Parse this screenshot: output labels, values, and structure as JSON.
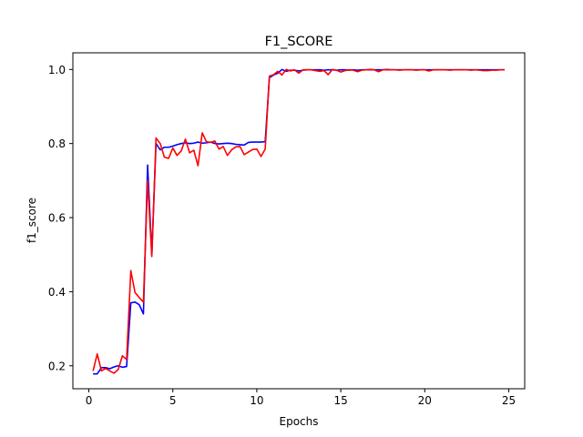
{
  "chart_data": {
    "type": "line",
    "title": "F1_SCORE",
    "xlabel": "Epochs",
    "ylabel": "f1_score",
    "xlim": [
      -0.95,
      25.95
    ],
    "ylim": [
      0.138,
      1.045
    ],
    "xticks": [
      0,
      5,
      10,
      15,
      20,
      25
    ],
    "yticks": [
      0.2,
      0.4,
      0.6,
      0.8,
      1.0
    ],
    "ytick_labels": [
      "0.2",
      "0.4",
      "0.6",
      "0.8",
      "1.0"
    ],
    "grid": false,
    "series": [
      {
        "color": "#0000ff",
        "x": [
          0.25,
          0.5,
          0.75,
          1.0,
          1.25,
          1.5,
          1.75,
          2.0,
          2.25,
          2.5,
          2.75,
          3.0,
          3.25,
          3.5,
          3.75,
          4.0,
          4.25,
          4.5,
          4.75,
          5.0,
          5.25,
          5.5,
          5.75,
          6.0,
          6.25,
          6.5,
          6.75,
          7.0,
          7.25,
          7.5,
          7.75,
          8.0,
          8.25,
          8.5,
          8.75,
          9.0,
          9.25,
          9.5,
          9.75,
          10.0,
          10.25,
          10.5,
          10.75,
          11.0,
          11.25,
          11.5,
          11.75,
          12.0,
          12.25,
          12.5,
          12.75,
          13.0,
          13.25,
          13.5,
          13.75,
          14.0,
          14.25,
          14.5,
          14.75,
          15.0,
          15.25,
          15.5,
          15.75,
          16.0,
          16.25,
          16.5,
          16.75,
          17.0,
          17.25,
          17.5,
          17.75,
          18.0,
          18.25,
          18.5,
          18.75,
          19.0,
          19.25,
          19.5,
          19.75,
          20.0,
          20.25,
          20.5,
          20.75,
          21.0,
          21.25,
          21.5,
          21.75,
          22.0,
          22.25,
          22.5,
          22.75,
          23.0,
          23.25,
          23.5,
          23.75,
          24.0,
          24.25,
          24.5,
          24.75
        ],
        "y": [
          0.178,
          0.178,
          0.195,
          0.195,
          0.192,
          0.197,
          0.2,
          0.196,
          0.198,
          0.37,
          0.372,
          0.365,
          0.34,
          0.742,
          0.5,
          0.8,
          0.783,
          0.79,
          0.79,
          0.793,
          0.797,
          0.8,
          0.802,
          0.8,
          0.801,
          0.804,
          0.801,
          0.802,
          0.804,
          0.8,
          0.799,
          0.8,
          0.801,
          0.8,
          0.798,
          0.797,
          0.796,
          0.803,
          0.804,
          0.804,
          0.804,
          0.805,
          0.978,
          0.985,
          0.99,
          1.0,
          0.995,
          0.998,
          0.998,
          0.996,
          0.998,
          0.999,
          0.999,
          0.999,
          0.999,
          0.998,
          0.999,
          0.999,
          0.998,
          0.999,
          0.999,
          0.998,
          0.999,
          0.998,
          0.999,
          0.999,
          0.999,
          0.999,
          0.999,
          0.999,
          1.0,
          0.999,
          0.999,
          0.999,
          0.999,
          0.999,
          0.999,
          0.999,
          0.999,
          0.999,
          0.999,
          0.999,
          0.999,
          0.999,
          0.999,
          0.999,
          0.999,
          0.999,
          0.999,
          0.999,
          0.999,
          0.999,
          0.999,
          0.999,
          0.999,
          0.999,
          0.999,
          0.999,
          0.999
        ]
      },
      {
        "color": "#ff0000",
        "x": [
          0.25,
          0.5,
          0.75,
          1.0,
          1.25,
          1.5,
          1.75,
          2.0,
          2.25,
          2.5,
          2.75,
          3.0,
          3.25,
          3.5,
          3.75,
          4.0,
          4.25,
          4.5,
          4.75,
          5.0,
          5.25,
          5.5,
          5.75,
          6.0,
          6.25,
          6.5,
          6.75,
          7.0,
          7.25,
          7.5,
          7.75,
          8.0,
          8.25,
          8.5,
          8.75,
          9.0,
          9.25,
          9.5,
          9.75,
          10.0,
          10.25,
          10.5,
          10.75,
          11.0,
          11.25,
          11.5,
          11.75,
          12.0,
          12.25,
          12.5,
          12.75,
          13.0,
          13.25,
          13.5,
          13.75,
          14.0,
          14.25,
          14.5,
          14.75,
          15.0,
          15.25,
          15.5,
          15.75,
          16.0,
          16.25,
          16.5,
          16.75,
          17.0,
          17.25,
          17.5,
          17.75,
          18.0,
          18.25,
          18.5,
          18.75,
          19.0,
          19.25,
          19.5,
          19.75,
          20.0,
          20.25,
          20.5,
          20.75,
          21.0,
          21.25,
          21.5,
          21.75,
          22.0,
          22.25,
          22.5,
          22.75,
          23.0,
          23.25,
          23.5,
          23.75,
          24.0,
          24.25,
          24.5,
          24.75
        ],
        "y": [
          0.186,
          0.232,
          0.186,
          0.193,
          0.186,
          0.18,
          0.19,
          0.227,
          0.217,
          0.457,
          0.398,
          0.384,
          0.372,
          0.7,
          0.495,
          0.815,
          0.8,
          0.763,
          0.76,
          0.788,
          0.768,
          0.78,
          0.812,
          0.775,
          0.782,
          0.74,
          0.829,
          0.805,
          0.803,
          0.807,
          0.785,
          0.792,
          0.768,
          0.783,
          0.791,
          0.792,
          0.77,
          0.777,
          0.784,
          0.785,
          0.765,
          0.785,
          0.982,
          0.986,
          0.995,
          0.985,
          1.0,
          0.996,
          0.999,
          0.99,
          0.999,
          0.999,
          0.999,
          0.997,
          0.995,
          0.997,
          0.986,
          1.0,
          0.998,
          0.993,
          0.997,
          0.999,
          0.998,
          0.994,
          0.998,
          0.999,
          1.0,
          0.999,
          0.994,
          0.999,
          0.999,
          0.999,
          0.999,
          0.998,
          0.999,
          0.999,
          0.999,
          0.998,
          0.999,
          0.999,
          0.996,
          0.999,
          0.999,
          0.999,
          0.999,
          0.998,
          0.999,
          0.999,
          0.999,
          0.999,
          0.998,
          0.999,
          0.998,
          0.997,
          0.997,
          0.998,
          0.998,
          0.999,
          0.999
        ]
      }
    ]
  }
}
